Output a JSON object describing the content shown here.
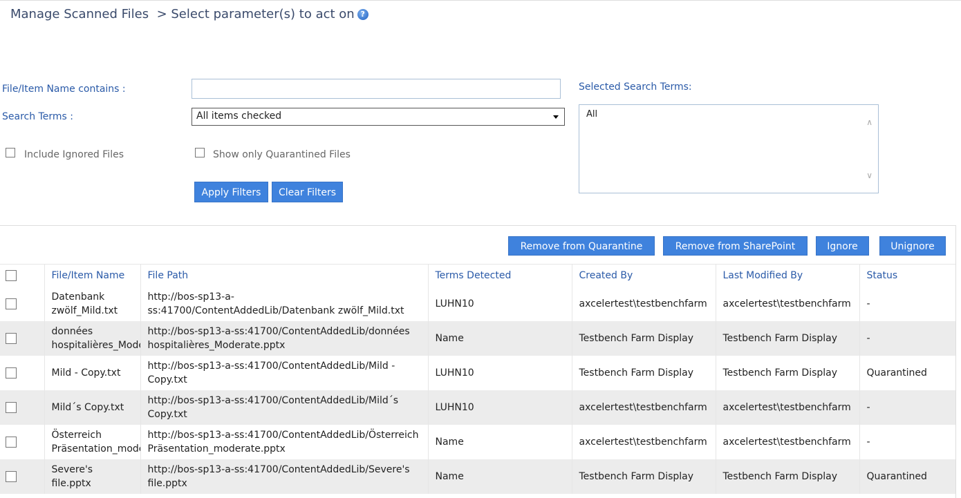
{
  "header": {
    "title": "Manage Scanned Files",
    "subtitle": "> Select parameter(s) to act on",
    "help_icon": "?"
  },
  "filters": {
    "name_label": "File/Item Name contains :",
    "name_value": "",
    "name_placeholder": "",
    "terms_label": "Search Terms :",
    "terms_value": "All items checked",
    "include_ignored": "Include Ignored Files",
    "only_quarantined": "Show only Quarantined Files",
    "apply": "Apply Filters",
    "clear": "Clear Filters",
    "selected_label": "Selected Search Terms:",
    "selected_items": [
      "All"
    ]
  },
  "actions": {
    "remove_quarantine": "Remove from Quarantine",
    "remove_sharepoint": "Remove from SharePoint",
    "ignore": "Ignore",
    "unignore": "Unignore"
  },
  "table": {
    "columns": [
      "File/Item Name",
      "File Path",
      "Terms Detected",
      "Created By",
      "Last Modified By",
      "Status"
    ],
    "rows": [
      {
        "name": "Datenbank zwölf_Mild.txt",
        "path": "http://bos-sp13-a-ss:41700/ContentAddedLib/Datenbank zwölf_Mild.txt",
        "terms": "LUHN10",
        "created": "axcelertest\\testbenchfarm",
        "modified": "axcelertest\\testbenchfarm",
        "status": "-"
      },
      {
        "name": "données hospitalières_Mode",
        "path": "http://bos-sp13-a-ss:41700/ContentAddedLib/données hospitalières_Moderate.pptx",
        "terms": "Name",
        "created": "Testbench Farm Display",
        "modified": "Testbench Farm Display",
        "status": "-"
      },
      {
        "name": "Mild - Copy.txt",
        "path": "http://bos-sp13-a-ss:41700/ContentAddedLib/Mild - Copy.txt",
        "terms": "LUHN10",
        "created": "Testbench Farm Display",
        "modified": "Testbench Farm Display",
        "status": "Quarantined"
      },
      {
        "name": "Mild´s Copy.txt",
        "path": "http://bos-sp13-a-ss:41700/ContentAddedLib/Mild´s Copy.txt",
        "terms": "LUHN10",
        "created": "axcelertest\\testbenchfarm",
        "modified": "axcelertest\\testbenchfarm",
        "status": "-"
      },
      {
        "name": "Österreich Präsentation_mode",
        "path": "http://bos-sp13-a-ss:41700/ContentAddedLib/Österreich Präsentation_moderate.pptx",
        "terms": "Name",
        "created": "axcelertest\\testbenchfarm",
        "modified": "axcelertest\\testbenchfarm",
        "status": "-"
      },
      {
        "name": "Severe's file.pptx",
        "path": "http://bos-sp13-a-ss:41700/ContentAddedLib/Severe's file.pptx",
        "terms": "Name",
        "created": "Testbench Farm Display",
        "modified": "Testbench Farm Display",
        "status": "Quarantined"
      }
    ]
  }
}
